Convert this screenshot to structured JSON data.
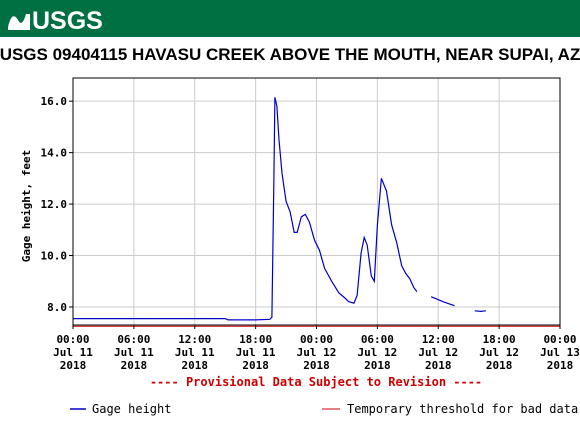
{
  "header": {
    "logo_text": "USGS",
    "banner_color": "#006f41"
  },
  "chart_data": {
    "type": "line",
    "title": "USGS 09404115 HAVASU CREEK ABOVE THE MOUTH, NEAR SUPAI, AZ",
    "ylabel": "Gage height, feet",
    "xlabel": "",
    "ylim": [
      7.3,
      16.9
    ],
    "yticks": [
      "8.0",
      "10.0",
      "12.0",
      "14.0",
      "16.0"
    ],
    "ytick_values": [
      8,
      10,
      12,
      14,
      16
    ],
    "xticks": [
      {
        "hours": 0,
        "time": "00:00",
        "date": "Jul 11",
        "year": "2018"
      },
      {
        "hours": 6,
        "time": "06:00",
        "date": "Jul 11",
        "year": "2018"
      },
      {
        "hours": 12,
        "time": "12:00",
        "date": "Jul 11",
        "year": "2018"
      },
      {
        "hours": 18,
        "time": "18:00",
        "date": "Jul 11",
        "year": "2018"
      },
      {
        "hours": 24,
        "time": "00:00",
        "date": "Jul 12",
        "year": "2018"
      },
      {
        "hours": 30,
        "time": "06:00",
        "date": "Jul 12",
        "year": "2018"
      },
      {
        "hours": 36,
        "time": "12:00",
        "date": "Jul 12",
        "year": "2018"
      },
      {
        "hours": 42,
        "time": "18:00",
        "date": "Jul 12",
        "year": "2018"
      },
      {
        "hours": 48,
        "time": "00:00",
        "date": "Jul 13",
        "year": "2018"
      }
    ],
    "xlim_hours": [
      0,
      48
    ],
    "grid": true,
    "series": [
      {
        "name": "Gage height",
        "color": "#0000cc",
        "segments": [
          [
            [
              0,
              7.55
            ],
            [
              6,
              7.55
            ],
            [
              12,
              7.55
            ],
            [
              15.0,
              7.55
            ],
            [
              15.3,
              7.5
            ],
            [
              18,
              7.5
            ],
            [
              19.4,
              7.52
            ],
            [
              19.6,
              7.6
            ],
            [
              19.8,
              13.0
            ],
            [
              19.9,
              16.15
            ],
            [
              20.1,
              15.8
            ],
            [
              20.3,
              14.5
            ],
            [
              20.6,
              13.2
            ],
            [
              21.0,
              12.1
            ],
            [
              21.4,
              11.7
            ],
            [
              21.8,
              10.9
            ],
            [
              22.1,
              10.9
            ],
            [
              22.5,
              11.5
            ],
            [
              22.9,
              11.6
            ],
            [
              23.3,
              11.3
            ],
            [
              23.8,
              10.6
            ],
            [
              24.3,
              10.2
            ],
            [
              24.8,
              9.5
            ],
            [
              25.5,
              9.0
            ],
            [
              26.2,
              8.55
            ],
            [
              26.8,
              8.35
            ],
            [
              27.2,
              8.2
            ],
            [
              27.7,
              8.15
            ],
            [
              28.0,
              8.45
            ],
            [
              28.4,
              10.1
            ],
            [
              28.7,
              10.7
            ],
            [
              29.0,
              10.4
            ],
            [
              29.4,
              9.2
            ],
            [
              29.7,
              9.0
            ],
            [
              30.0,
              11.2
            ],
            [
              30.4,
              13.0
            ],
            [
              30.9,
              12.5
            ],
            [
              31.4,
              11.2
            ],
            [
              31.9,
              10.5
            ],
            [
              32.4,
              9.6
            ],
            [
              32.8,
              9.3
            ],
            [
              33.2,
              9.1
            ],
            [
              33.6,
              8.75
            ],
            [
              33.9,
              8.6
            ]
          ],
          [
            [
              35.3,
              8.4
            ],
            [
              36.5,
              8.2
            ],
            [
              37.6,
              8.05
            ]
          ],
          [
            [
              39.6,
              7.85
            ],
            [
              40.2,
              7.83
            ],
            [
              40.7,
              7.85
            ]
          ]
        ]
      }
    ],
    "threshold": {
      "name": "Temporary threshold for bad data",
      "value": 7.25,
      "color": "#cc0000"
    },
    "provisional_note": "---- Provisional Data Subject to Revision ----",
    "legend": {
      "placement": "bottom"
    }
  }
}
